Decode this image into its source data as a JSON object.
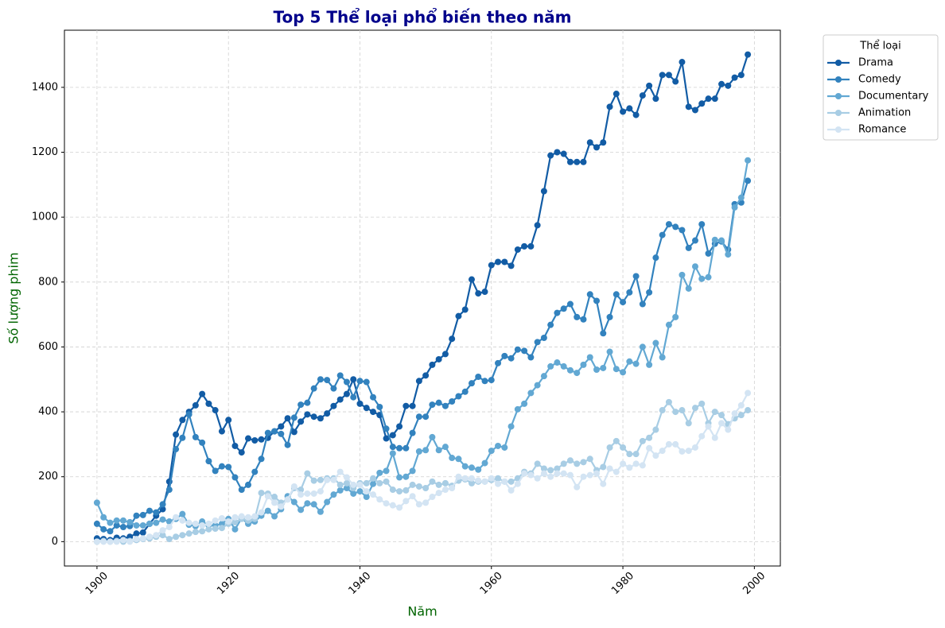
{
  "chart_data": {
    "type": "line",
    "title": "Top 5 Thể loại phổ biến theo năm",
    "x_label": "Năm",
    "y_label": "Số lượng phim",
    "legend_title": "Thể loại",
    "legend": "upper right outside",
    "grid": true,
    "xlim": [
      1895.05,
      2003.95
    ],
    "xticks": [
      1900,
      1920,
      1940,
      1960,
      1980,
      2000
    ],
    "ylim": [
      -75.05,
      1576.05
    ],
    "yticks": [
      0,
      200,
      400,
      600,
      800,
      1000,
      1200,
      1400
    ],
    "x": [
      1900,
      1901,
      1902,
      1903,
      1904,
      1905,
      1906,
      1907,
      1908,
      1909,
      1910,
      1911,
      1912,
      1913,
      1914,
      1915,
      1916,
      1917,
      1918,
      1919,
      1920,
      1921,
      1922,
      1923,
      1924,
      1925,
      1926,
      1927,
      1928,
      1929,
      1930,
      1931,
      1932,
      1933,
      1934,
      1935,
      1936,
      1937,
      1938,
      1939,
      1940,
      1941,
      1942,
      1943,
      1944,
      1945,
      1946,
      1947,
      1948,
      1949,
      1950,
      1951,
      1952,
      1953,
      1954,
      1955,
      1956,
      1957,
      1958,
      1959,
      1960,
      1961,
      1962,
      1963,
      1964,
      1965,
      1966,
      1967,
      1968,
      1969,
      1970,
      1971,
      1972,
      1973,
      1974,
      1975,
      1976,
      1977,
      1978,
      1979,
      1980,
      1981,
      1982,
      1983,
      1984,
      1985,
      1986,
      1987,
      1988,
      1989,
      1990,
      1991,
      1992,
      1993,
      1994,
      1995,
      1996,
      1997,
      1998,
      1999
    ],
    "series": [
      {
        "name": "Drama",
        "color": "#125ca5",
        "values": [
          10,
          8,
          5,
          12,
          10,
          15,
          25,
          28,
          55,
          80,
          100,
          185,
          330,
          375,
          400,
          420,
          455,
          425,
          405,
          340,
          375,
          295,
          275,
          318,
          312,
          315,
          320,
          340,
          355,
          380,
          338,
          370,
          392,
          385,
          380,
          395,
          418,
          438,
          455,
          500,
          425,
          412,
          400,
          390,
          318,
          328,
          355,
          418,
          418,
          495,
          512,
          545,
          562,
          578,
          625,
          695,
          715,
          808,
          765,
          770,
          852,
          862,
          862,
          850,
          900,
          910,
          910,
          975,
          1080,
          1190,
          1200,
          1195,
          1170,
          1170,
          1170,
          1230,
          1215,
          1230,
          1340,
          1380,
          1325,
          1335,
          1315,
          1375,
          1405,
          1365,
          1438,
          1438,
          1418,
          1478,
          1340,
          1330,
          1350,
          1365,
          1365,
          1410,
          1405,
          1430,
          1438,
          1501
        ]
      },
      {
        "name": "Comedy",
        "color": "#3282be",
        "values": [
          55,
          38,
          32,
          50,
          45,
          48,
          80,
          82,
          95,
          90,
          115,
          160,
          285,
          320,
          392,
          322,
          305,
          248,
          218,
          232,
          230,
          198,
          160,
          175,
          215,
          255,
          335,
          340,
          332,
          298,
          382,
          422,
          428,
          472,
          500,
          498,
          472,
          512,
          492,
          445,
          495,
          492,
          445,
          415,
          348,
          292,
          288,
          288,
          335,
          385,
          385,
          422,
          428,
          418,
          432,
          448,
          462,
          488,
          508,
          495,
          498,
          550,
          572,
          565,
          592,
          588,
          568,
          615,
          628,
          668,
          705,
          718,
          732,
          692,
          685,
          762,
          742,
          642,
          692,
          762,
          738,
          768,
          818,
          732,
          768,
          875,
          945,
          978,
          970,
          960,
          905,
          928,
          978,
          888,
          918,
          925,
          900,
          1040,
          1045,
          1112
        ]
      },
      {
        "name": "Documentary",
        "color": "#62a8d3",
        "values": [
          120,
          75,
          58,
          65,
          65,
          60,
          50,
          50,
          55,
          58,
          68,
          62,
          70,
          85,
          52,
          48,
          62,
          50,
          50,
          55,
          70,
          38,
          72,
          55,
          62,
          80,
          95,
          78,
          100,
          140,
          122,
          98,
          118,
          115,
          92,
          122,
          145,
          158,
          165,
          148,
          155,
          138,
          178,
          212,
          218,
          272,
          198,
          200,
          218,
          278,
          282,
          322,
          282,
          292,
          258,
          255,
          232,
          228,
          222,
          242,
          280,
          295,
          290,
          355,
          408,
          425,
          458,
          482,
          510,
          540,
          552,
          540,
          528,
          520,
          545,
          568,
          530,
          535,
          585,
          532,
          522,
          555,
          548,
          600,
          545,
          612,
          568,
          668,
          692,
          822,
          780,
          848,
          810,
          815,
          930,
          928,
          885,
          1030,
          1060,
          1175
        ]
      },
      {
        "name": "Animation",
        "color": "#a8cde4",
        "values": [
          0,
          2,
          0,
          2,
          0,
          2,
          5,
          8,
          10,
          15,
          20,
          8,
          15,
          20,
          25,
          30,
          32,
          38,
          40,
          42,
          55,
          60,
          70,
          65,
          70,
          150,
          148,
          138,
          120,
          130,
          165,
          160,
          210,
          188,
          190,
          195,
          195,
          175,
          180,
          165,
          180,
          180,
          195,
          180,
          185,
          160,
          155,
          158,
          175,
          170,
          165,
          185,
          175,
          180,
          172,
          188,
          192,
          180,
          185,
          185,
          190,
          195,
          185,
          185,
          195,
          215,
          210,
          240,
          225,
          220,
          225,
          240,
          250,
          240,
          245,
          255,
          220,
          230,
          290,
          310,
          290,
          270,
          270,
          310,
          320,
          345,
          405,
          430,
          400,
          405,
          365,
          412,
          425,
          365,
          400,
          390,
          362,
          380,
          390,
          405
        ]
      },
      {
        "name": "Romance",
        "color": "#d3e4f3",
        "values": [
          0,
          0,
          0,
          0,
          5,
          0,
          8,
          10,
          15,
          20,
          35,
          45,
          75,
          65,
          58,
          55,
          50,
          55,
          65,
          72,
          62,
          75,
          78,
          75,
          78,
          90,
          140,
          120,
          108,
          130,
          170,
          145,
          148,
          148,
          155,
          190,
          190,
          215,
          198,
          175,
          175,
          155,
          145,
          130,
          118,
          112,
          105,
          125,
          140,
          115,
          120,
          138,
          150,
          160,
          165,
          200,
          195,
          195,
          188,
          185,
          195,
          178,
          185,
          158,
          178,
          210,
          205,
          195,
          210,
          200,
          210,
          210,
          205,
          168,
          200,
          205,
          210,
          178,
          225,
          215,
          240,
          228,
          240,
          235,
          288,
          265,
          280,
          300,
          300,
          278,
          280,
          290,
          325,
          355,
          320,
          365,
          345,
          395,
          420,
          458
        ]
      }
    ]
  }
}
